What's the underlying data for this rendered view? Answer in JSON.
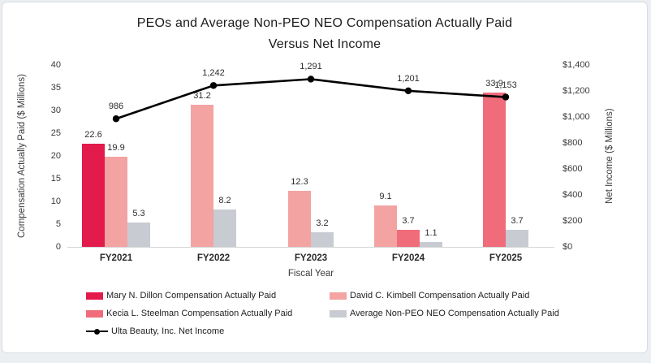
{
  "header": {
    "title_line1": "PEOs and Average Non-PEO NEO Compensation Actually Paid",
    "title_line2": "Versus Net Income"
  },
  "chart_data": {
    "type": "combo-bar-line",
    "title": "PEOs and Average Non-PEO NEO Compensation Actually Paid Versus Net Income",
    "xlabel": "Fiscal Year",
    "categories": [
      "FY2021",
      "FY2022",
      "FY2023",
      "FY2024",
      "FY2025"
    ],
    "grid": "off",
    "legend_position": "bottom-left",
    "left_axis": {
      "label": "Compensation Actually Paid ($ Millions)",
      "min": 0,
      "max": 40,
      "ticks": [
        0,
        5,
        10,
        15,
        20,
        25,
        30,
        35,
        40
      ]
    },
    "right_axis": {
      "label": "Net Income ($ Millions)",
      "min": 0,
      "max": 1400,
      "tick_values": [
        0,
        200,
        400,
        600,
        800,
        1000,
        1200,
        1400
      ],
      "tick_labels": [
        "$0",
        "$200",
        "$400",
        "$600",
        "$800",
        "$1,000",
        "$1,200",
        "$1,400"
      ]
    },
    "bar_series": [
      {
        "key": "dillon",
        "name": "Mary N. Dillon Compensation Actually Paid",
        "color": "#E31A4C",
        "values": [
          22.6,
          null,
          null,
          null,
          null
        ]
      },
      {
        "key": "kimbell",
        "name": "David C. Kimbell Compensation Actually Paid",
        "color": "#F3A3A2",
        "values": [
          19.9,
          31.2,
          12.3,
          9.1,
          null
        ]
      },
      {
        "key": "steelman",
        "name": "Kecia L. Steelman Compensation Actually Paid",
        "color": "#F06C7B",
        "values": [
          null,
          null,
          null,
          3.7,
          33.9
        ]
      },
      {
        "key": "avg-non-peo",
        "name": "Average Non-PEO NEO Compensation Actually Paid",
        "color": "#C8CBD1",
        "values": [
          5.3,
          8.2,
          3.2,
          1.1,
          3.7
        ]
      }
    ],
    "line_series": {
      "key": "net-income",
      "name": "Ulta Beauty, Inc. Net Income",
      "color": "#000000",
      "values": [
        986,
        1242,
        1291,
        1201,
        1153
      ],
      "labels": [
        "986",
        "1,242",
        "1,291",
        "1,201",
        "1,153"
      ]
    }
  }
}
